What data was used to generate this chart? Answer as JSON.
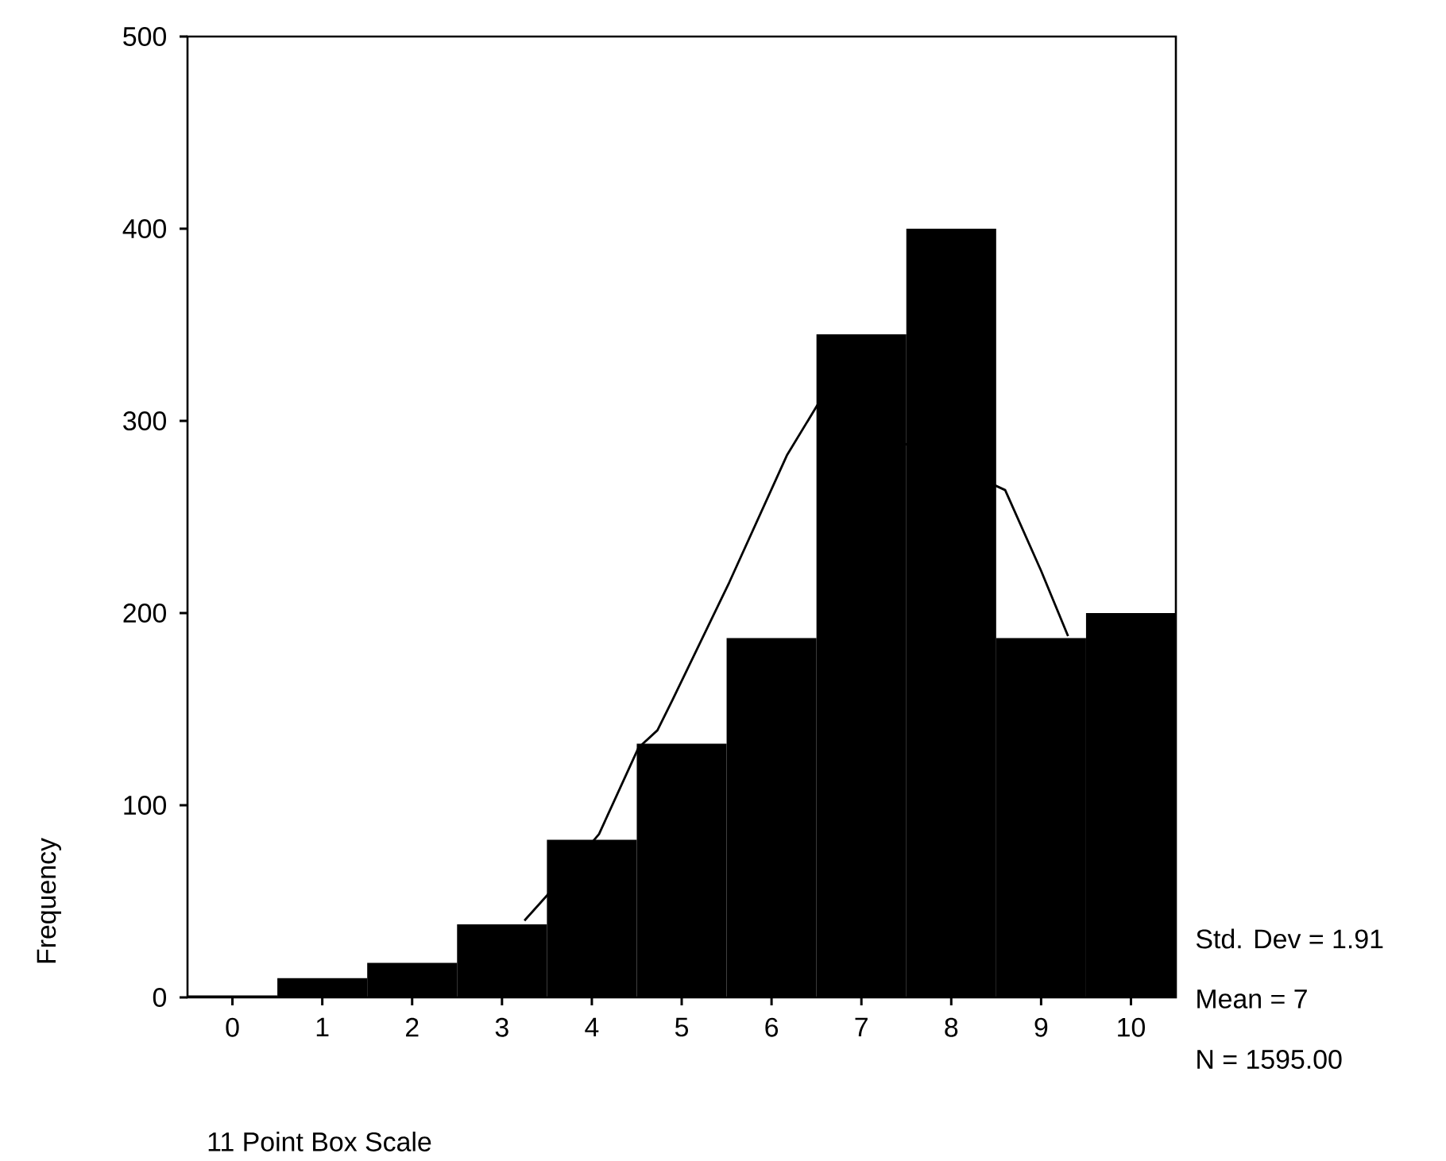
{
  "chart_data": {
    "type": "histogram",
    "bins": [
      -0.5,
      0.5,
      1.5,
      2.5,
      3.5,
      4.5,
      5.5,
      6.5,
      7.5,
      8.5,
      9.5,
      10.5
    ],
    "values": [
      1,
      10,
      18,
      38,
      82,
      132,
      187,
      345,
      400,
      187,
      200
    ],
    "color": "#000000",
    "series": [
      {
        "type": "line",
        "color": "#000000",
        "x": [
          3.25,
          3.5,
          4.08,
          4.52,
          4.73,
          4.9,
          5.53,
          6.17,
          6.52,
          8.6,
          9.0,
          9.3
        ],
        "values": [
          40,
          53,
          85,
          130,
          139,
          155,
          216,
          282,
          309,
          264,
          222,
          188
        ]
      }
    ],
    "xlabel": "11 Point Box Scale",
    "ylabel": "Frequency",
    "xlim": [
      -0.5,
      10.5
    ],
    "ylim": [
      0,
      500
    ],
    "xticks": [
      0,
      1,
      2,
      3,
      4,
      5,
      6,
      7,
      8,
      9,
      10
    ],
    "yticks": [
      0,
      100,
      200,
      300,
      400,
      500
    ],
    "grid": false,
    "annotations": [
      "Std. Dev = 1.91",
      "Mean = 7",
      "N = 1595.00"
    ]
  }
}
